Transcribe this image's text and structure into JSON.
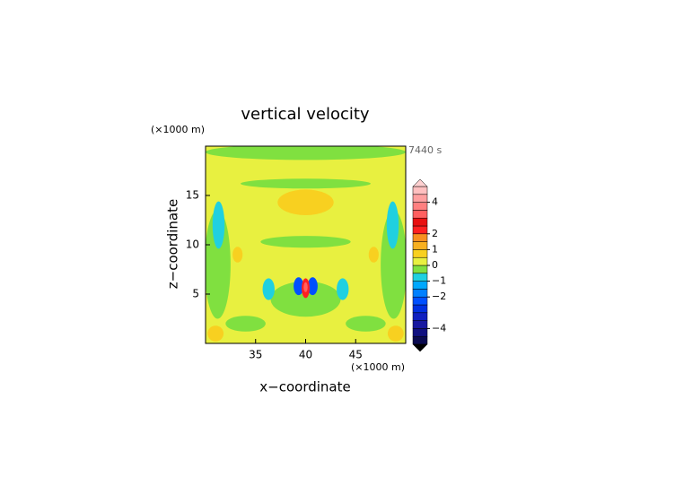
{
  "chart_data": {
    "type": "contour",
    "title": "vertical velocity",
    "time_label": "7440 s",
    "x_label": "x−coordinate",
    "y_label": "z−coordinate",
    "x_unit": "(×1000 m)",
    "y_unit": "(×1000 m)",
    "xlim": [
      30,
      50
    ],
    "ylim": [
      0,
      20
    ],
    "xticks": [
      35,
      40,
      45
    ],
    "yticks": [
      5,
      10,
      15
    ],
    "background_value": 0.2,
    "features": [
      {
        "x": 40,
        "y": 19.4,
        "rx": 10,
        "ry": 0.8,
        "value": -0.2
      },
      {
        "x": 40,
        "y": 16.2,
        "rx": 6.5,
        "ry": 0.5,
        "value": -0.2
      },
      {
        "x": 40,
        "y": 14.3,
        "rx": 2.8,
        "ry": 1.3,
        "value": 0.7
      },
      {
        "x": 31.2,
        "y": 8,
        "rx": 1.3,
        "ry": 5.5,
        "value": -0.2
      },
      {
        "x": 48.8,
        "y": 8,
        "rx": 1.3,
        "ry": 5.5,
        "value": -0.2
      },
      {
        "x": 31.3,
        "y": 12,
        "rx": 0.6,
        "ry": 2.4,
        "value": -0.8
      },
      {
        "x": 48.7,
        "y": 12,
        "rx": 0.6,
        "ry": 2.4,
        "value": -0.8
      },
      {
        "x": 33.2,
        "y": 9,
        "rx": 0.5,
        "ry": 0.8,
        "value": 0.7
      },
      {
        "x": 46.8,
        "y": 9,
        "rx": 0.5,
        "ry": 0.8,
        "value": 0.7
      },
      {
        "x": 40,
        "y": 10.3,
        "rx": 4.5,
        "ry": 0.6,
        "value": -0.2
      },
      {
        "x": 40,
        "y": 4.5,
        "rx": 3.5,
        "ry": 1.8,
        "value": -0.2
      },
      {
        "x": 36.3,
        "y": 5.5,
        "rx": 0.6,
        "ry": 1.1,
        "value": -0.8
      },
      {
        "x": 43.7,
        "y": 5.5,
        "rx": 0.6,
        "ry": 1.1,
        "value": -0.8
      },
      {
        "x": 39.3,
        "y": 5.8,
        "rx": 0.5,
        "ry": 0.9,
        "value": -2.5
      },
      {
        "x": 40.7,
        "y": 5.8,
        "rx": 0.5,
        "ry": 0.9,
        "value": -2.5
      },
      {
        "x": 40,
        "y": 5.6,
        "rx": 0.4,
        "ry": 1.0,
        "value": 2.2
      },
      {
        "x": 40,
        "y": 5.7,
        "rx": 0.2,
        "ry": 0.5,
        "value": 3.2
      },
      {
        "x": 34,
        "y": 2,
        "rx": 2,
        "ry": 0.8,
        "value": -0.2
      },
      {
        "x": 46,
        "y": 2,
        "rx": 2,
        "ry": 0.8,
        "value": -0.2
      },
      {
        "x": 31,
        "y": 1,
        "rx": 0.8,
        "ry": 0.8,
        "value": 0.7
      },
      {
        "x": 49,
        "y": 1,
        "rx": 0.8,
        "ry": 0.8,
        "value": 0.7
      }
    ],
    "levels": [
      -5,
      -4.5,
      -4,
      -3.5,
      -3,
      -2.5,
      -2,
      -1.5,
      -1,
      -0.5,
      0,
      0.5,
      1,
      1.5,
      2,
      2.5,
      3,
      3.5,
      4,
      4.5,
      5
    ],
    "colors": [
      "#0a0a50",
      "#101080",
      "#1818a0",
      "#1020c0",
      "#0030e0",
      "#0050ff",
      "#0080ff",
      "#00a8ff",
      "#20d0e0",
      "#80e040",
      "#e8f040",
      "#f8d020",
      "#f8b020",
      "#f89020",
      "#ff2020",
      "#e81010",
      "#ff6060",
      "#ff8080",
      "#ffa0a0",
      "#ffc0c0"
    ],
    "under_color": "#000000",
    "over_color": "#ffd0d0",
    "colorbar_ticks": [
      4,
      2,
      1,
      0,
      {
        "value": -1,
        "label": "−1"
      },
      {
        "value": -2,
        "label": "−2"
      },
      {
        "value": -4,
        "label": "−4"
      }
    ]
  }
}
